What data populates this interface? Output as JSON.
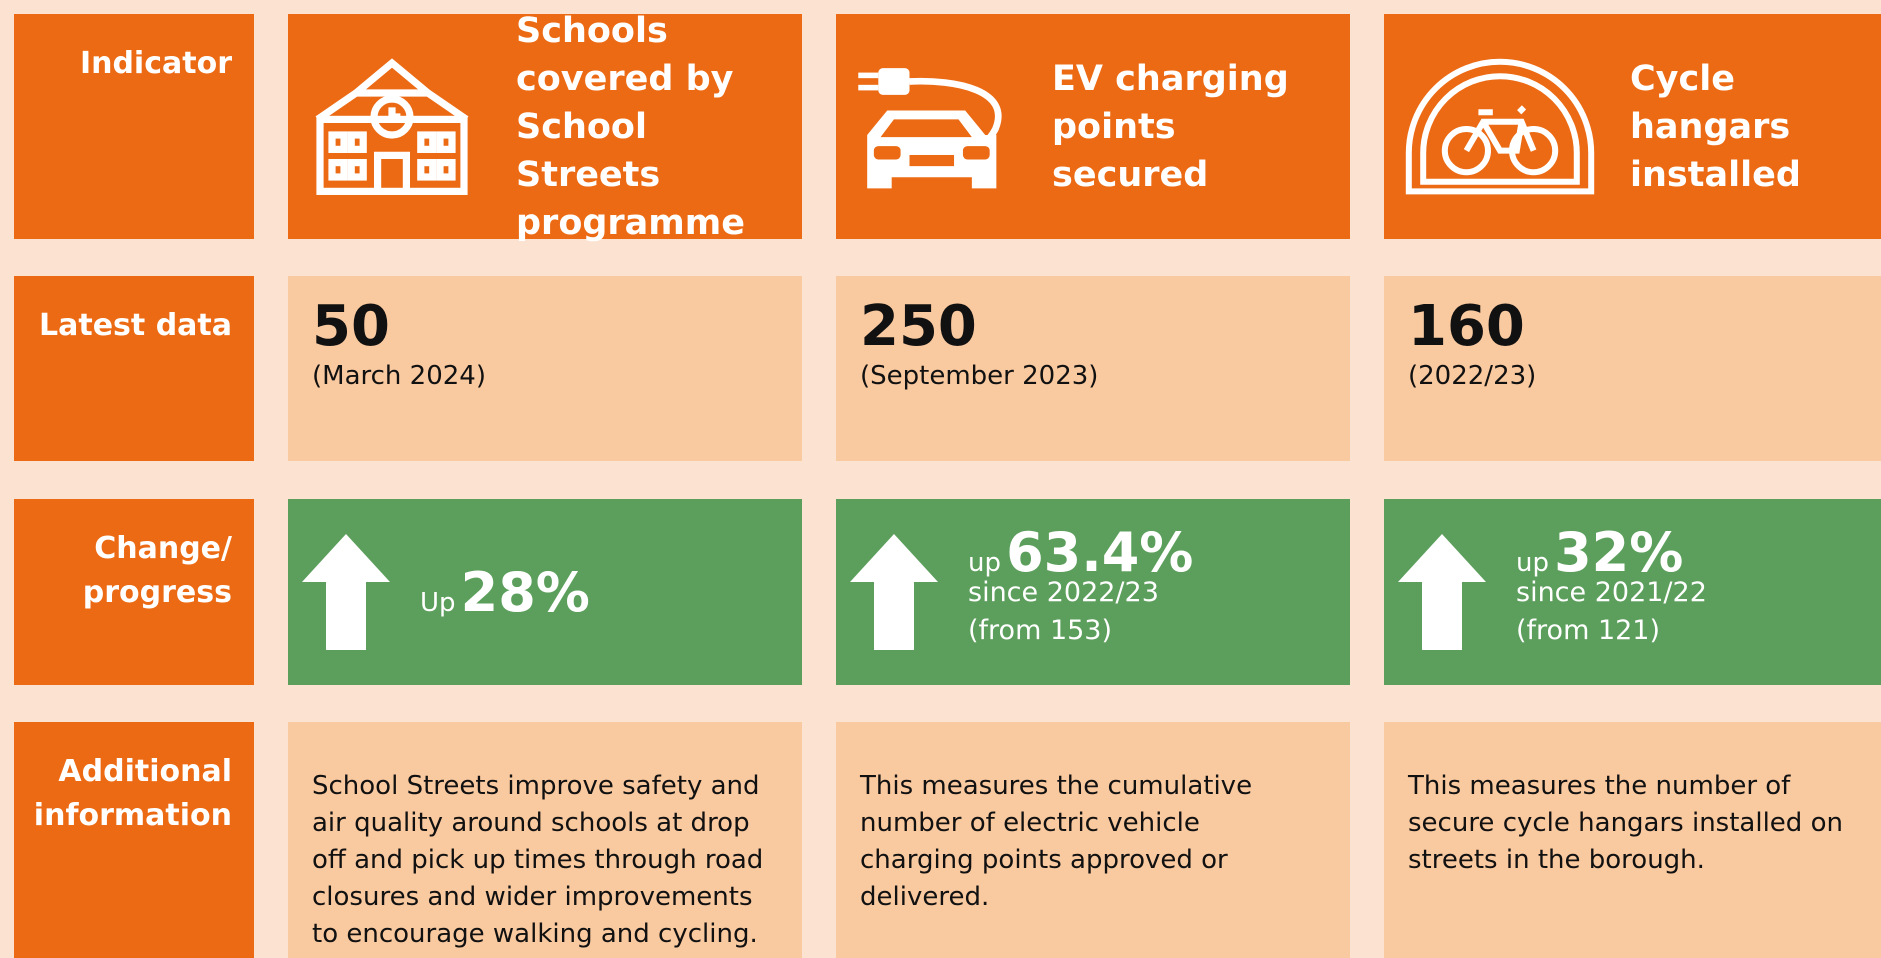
{
  "row_labels": [
    "Indicator",
    "Latest data",
    "Change/ progress",
    "Additional information"
  ],
  "columns": [
    {
      "title_lines": [
        "Schools",
        "covered by",
        "School Streets",
        "programme"
      ],
      "latest_value": "50",
      "latest_date": "(March 2024)",
      "change": {
        "prefix": "Up",
        "value": "28%",
        "lines": []
      },
      "info": "School Streets improve safety and air quality around schools at drop off and pick up times through road closures and wider improvements to encourage walking and cycling."
    },
    {
      "title_lines": [
        "EV charging",
        "points",
        "secured"
      ],
      "latest_value": "250",
      "latest_date": "(September 2023)",
      "change": {
        "prefix": "up",
        "value": "63.4%",
        "lines": [
          "since 2022/23",
          "(from 153)"
        ]
      },
      "info": "This measures the cumulative number of electric vehicle charging points approved or delivered."
    },
    {
      "title_lines": [
        "Cycle",
        "hangars",
        "installed"
      ],
      "latest_value": "160",
      "latest_date": "(2022/23)",
      "change": {
        "prefix": "up",
        "value": "32%",
        "lines": [
          "since 2021/22",
          "(from 121)"
        ]
      },
      "info": "This measures the number of secure cycle hangars installed on streets in the borough."
    }
  ]
}
